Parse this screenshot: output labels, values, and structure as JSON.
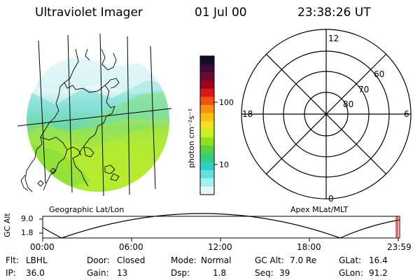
{
  "header": {
    "instrument": "Ultraviolet Imager",
    "date": "01 Jul 00",
    "time": "23:38:26 UT"
  },
  "geo_panel": {
    "label": "Geographic Lat/Lon"
  },
  "colorbar": {
    "unit_label": "photon cm⁻²s⁻¹",
    "ticks": [
      "100",
      "10"
    ],
    "colors_top_to_bottom": [
      "#1a0a2a",
      "#3a0a3a",
      "#6a0a30",
      "#a00020",
      "#d81818",
      "#f05010",
      "#f89010",
      "#f8c010",
      "#f0e020",
      "#c8f020",
      "#90e020",
      "#58d040",
      "#30d080",
      "#30d0c0",
      "#60e0e0",
      "#a0f0f0",
      "#e0f8f8"
    ]
  },
  "polar_panel": {
    "label": "Apex MLat/MLT",
    "mlt_labels": {
      "top": "12",
      "right": "6",
      "left": "18",
      "bottom": "0"
    },
    "lat_labels": [
      "60",
      "70",
      "80"
    ]
  },
  "altitude_strip": {
    "axis_label": "GC Alt",
    "y_ticks": [
      "9.0",
      "1.8"
    ],
    "x_ticks": [
      "00:00",
      "06:00",
      "12:00",
      "18:00",
      "23:59"
    ],
    "marker_color": "#e00000"
  },
  "info": {
    "row1": {
      "flt_label": "Flt:",
      "flt_value": "LBHL",
      "door_label": "Door:",
      "door_value": "Closed",
      "mode_label": "Mode:",
      "mode_value": "Normal",
      "gcalt_label": "GC Alt:",
      "gcalt_value": "7.0 Re",
      "glat_label": "GLat:",
      "glat_value": "16.4"
    },
    "row2": {
      "ip_label": "IP:",
      "ip_value": "36.0",
      "gain_label": "Gain:",
      "gain_value": "13",
      "dsp_label": "Dsp:",
      "dsp_value": "1.8",
      "seq_label": "Seq:",
      "seq_value": "39",
      "glon_label": "GLon:",
      "glon_value": "91.2"
    }
  }
}
